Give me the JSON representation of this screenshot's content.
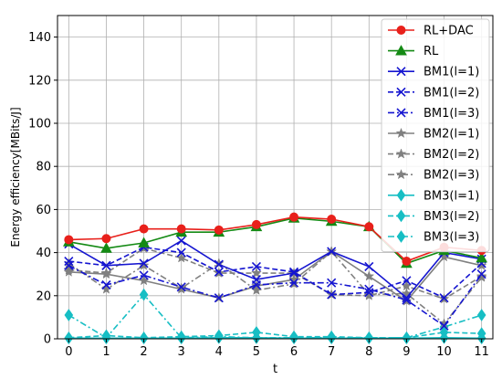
{
  "chart_data": {
    "type": "line",
    "title": "",
    "xlabel": "t",
    "ylabel": "Energy efficiency[MBits/J]",
    "x": [
      0,
      1,
      2,
      3,
      4,
      5,
      6,
      7,
      8,
      9,
      10,
      11
    ],
    "xlim": [
      -0.3,
      11.3
    ],
    "ylim": [
      0,
      150
    ],
    "xticks": [
      "0",
      "1",
      "2",
      "3",
      "4",
      "5",
      "6",
      "7",
      "8",
      "9",
      "10",
      "11"
    ],
    "yticks": [
      0,
      20,
      40,
      60,
      80,
      100,
      120,
      140
    ],
    "grid": true,
    "legend_position": "top-right",
    "series": [
      {
        "name": "RL+DAC",
        "color": "#e8201b",
        "dash": "solid",
        "marker": "circle",
        "values": [
          46,
          46.5,
          51,
          51,
          50.5,
          53,
          56.5,
          55.5,
          52,
          36,
          42.5,
          41
        ]
      },
      {
        "name": "RL",
        "color": "#148a14",
        "dash": "solid",
        "marker": "triangle",
        "values": [
          45,
          42,
          44.5,
          49.5,
          49.5,
          52,
          56,
          54.5,
          52,
          35,
          41,
          37.5
        ]
      },
      {
        "name": "BM1(l=1)",
        "color": "#1515d0",
        "dash": "solid",
        "marker": "x",
        "values": [
          44,
          34,
          35,
          45.5,
          34.5,
          27.5,
          30.5,
          40.5,
          33.5,
          19,
          40,
          37
        ]
      },
      {
        "name": "BM1(l=2)",
        "color": "#1515d0",
        "dash": "dashed",
        "marker": "x",
        "values": [
          36,
          34,
          42.5,
          40,
          31,
          33.5,
          31,
          20.5,
          21.5,
          27,
          19,
          35
        ]
      },
      {
        "name": "BM1(l=3)",
        "color": "#1515d0",
        "dash": "dashdot",
        "marker": "x",
        "values": [
          34,
          25,
          29.5,
          24,
          19,
          25,
          26,
          26,
          23,
          18,
          6,
          30
        ]
      },
      {
        "name": "BM2(l=1)",
        "color": "#808080",
        "dash": "solid",
        "marker": "star",
        "values": [
          31,
          30,
          27,
          23,
          19,
          24.5,
          27.5,
          40.5,
          29,
          17.5,
          38,
          34
        ]
      },
      {
        "name": "BM2(l=2)",
        "color": "#808080",
        "dash": "dashed",
        "marker": "star",
        "values": [
          32,
          30.5,
          42,
          37.5,
          30.5,
          30.5,
          30.5,
          20.5,
          20,
          24.5,
          18.5,
          29
        ]
      },
      {
        "name": "BM2(l=3)",
        "color": "#808080",
        "dash": "dashdot",
        "marker": "star",
        "values": [
          35,
          23,
          34,
          23.5,
          35,
          22.5,
          25.5,
          40.5,
          20.5,
          21,
          7,
          28.5
        ]
      },
      {
        "name": "BM3(l=1)",
        "color": "#17bec4",
        "dash": "solid",
        "marker": "diamond",
        "values": [
          0.3,
          0.3,
          0.3,
          0.3,
          0.5,
          0.5,
          0.3,
          0.3,
          0.3,
          0.3,
          0.5,
          0.3
        ]
      },
      {
        "name": "BM3(l=2)",
        "color": "#17bec4",
        "dash": "dashed",
        "marker": "diamond",
        "values": [
          0.5,
          1.5,
          0.5,
          1,
          1.5,
          3,
          1,
          1,
          0.5,
          0.5,
          3,
          2.5
        ]
      },
      {
        "name": "BM3(l=3)",
        "color": "#17bec4",
        "dash": "dashdot",
        "marker": "diamond",
        "values": [
          11,
          0.5,
          20.5,
          0.5,
          1,
          0.5,
          0.5,
          0.5,
          0.5,
          0.5,
          5.5,
          11
        ]
      }
    ]
  }
}
